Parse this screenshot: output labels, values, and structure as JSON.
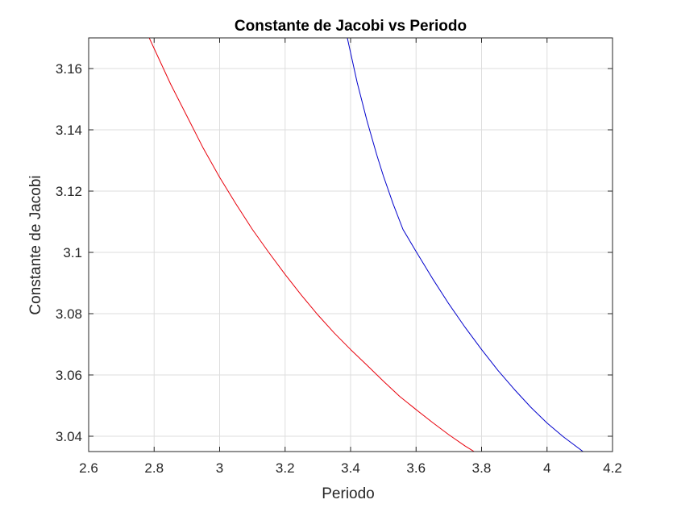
{
  "chart_data": {
    "type": "line",
    "title": "Constante de Jacobi vs Periodo",
    "xlabel": "Periodo",
    "ylabel": "Constante de Jacobi",
    "xlim": [
      2.6,
      4.2
    ],
    "ylim": [
      3.035,
      3.17
    ],
    "x_ticks": [
      2.6,
      2.8,
      3.0,
      3.2,
      3.4,
      3.6,
      3.8,
      4.0,
      4.2
    ],
    "x_tick_labels": [
      "2.6",
      "2.8",
      "3",
      "3.2",
      "3.4",
      "3.6",
      "3.8",
      "4",
      "4.2"
    ],
    "y_ticks": [
      3.04,
      3.06,
      3.08,
      3.1,
      3.12,
      3.14,
      3.16
    ],
    "y_tick_labels": [
      "3.04",
      "3.06",
      "3.08",
      "3.1",
      "3.12",
      "3.14",
      "3.16"
    ],
    "grid": true,
    "legend": "none",
    "series": [
      {
        "color": "#e8000b",
        "x": [
          2.785,
          2.85,
          2.9,
          2.95,
          3.0,
          3.05,
          3.1,
          3.15,
          3.2,
          3.25,
          3.3,
          3.35,
          3.4,
          3.45,
          3.5,
          3.55,
          3.6,
          3.65,
          3.7,
          3.75,
          3.8,
          3.835
        ],
        "y": [
          3.17,
          3.155,
          3.1445,
          3.134,
          3.1245,
          3.1158,
          3.1075,
          3.1,
          3.0928,
          3.086,
          3.0796,
          3.0737,
          3.0683,
          3.0632,
          3.058,
          3.053,
          3.0487,
          3.0445,
          3.0405,
          3.0368,
          3.0335,
          3.035
        ]
      },
      {
        "color": "#0000cc",
        "x": [
          3.39,
          3.42,
          3.45,
          3.48,
          3.5,
          3.53,
          3.56,
          3.6,
          3.65,
          3.7,
          3.75,
          3.8,
          3.85,
          3.9,
          3.95,
          4.0,
          4.05,
          4.11
        ],
        "y": [
          3.17,
          3.1555,
          3.143,
          3.1318,
          3.125,
          3.1158,
          3.1075,
          3.1003,
          3.0915,
          3.0832,
          3.0755,
          3.0683,
          3.0615,
          3.0553,
          3.0495,
          3.0443,
          3.0398,
          3.035
        ]
      }
    ]
  }
}
